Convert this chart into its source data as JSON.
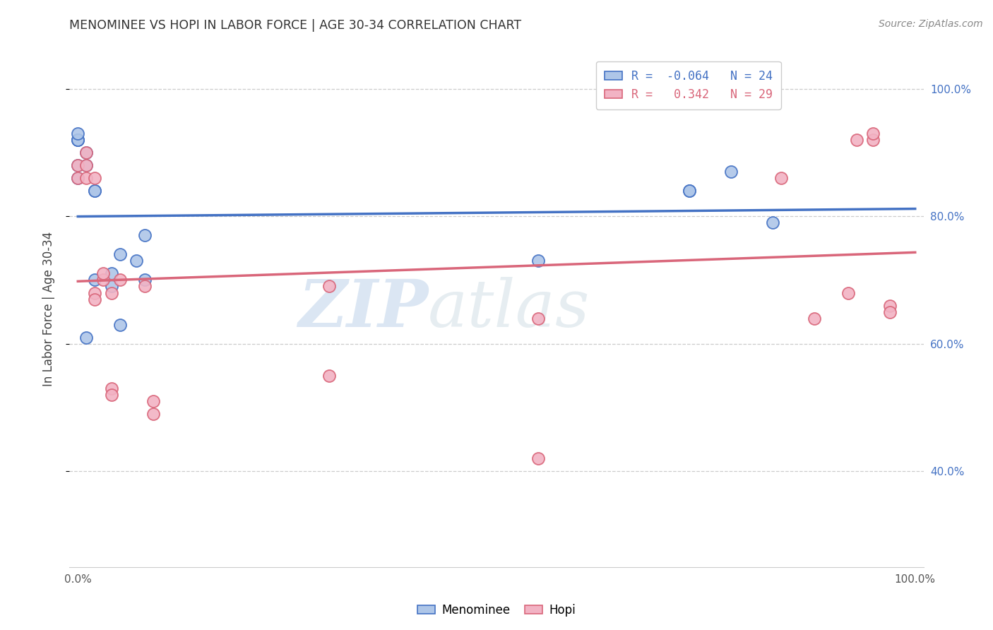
{
  "title": "MENOMINEE VS HOPI IN LABOR FORCE | AGE 30-34 CORRELATION CHART",
  "source": "Source: ZipAtlas.com",
  "ylabel": "In Labor Force | Age 30-34",
  "xlim": [
    -0.01,
    1.01
  ],
  "ylim": [
    0.25,
    1.06
  ],
  "menominee_x": [
    0.0,
    0.0,
    0.0,
    0.0,
    0.0,
    0.0,
    0.01,
    0.01,
    0.01,
    0.02,
    0.02,
    0.02,
    0.04,
    0.04,
    0.05,
    0.05,
    0.07,
    0.08,
    0.08,
    0.55,
    0.73,
    0.73,
    0.78,
    0.83
  ],
  "menominee_y": [
    0.92,
    0.92,
    0.92,
    0.86,
    0.88,
    0.93,
    0.88,
    0.9,
    0.61,
    0.84,
    0.84,
    0.7,
    0.71,
    0.69,
    0.74,
    0.63,
    0.73,
    0.77,
    0.7,
    0.73,
    0.84,
    0.84,
    0.87,
    0.79
  ],
  "hopi_x": [
    0.0,
    0.0,
    0.01,
    0.01,
    0.01,
    0.02,
    0.02,
    0.02,
    0.03,
    0.03,
    0.04,
    0.04,
    0.04,
    0.05,
    0.08,
    0.09,
    0.09,
    0.3,
    0.3,
    0.55,
    0.55,
    0.84,
    0.88,
    0.92,
    0.93,
    0.95,
    0.95,
    0.97,
    0.97
  ],
  "hopi_y": [
    0.86,
    0.88,
    0.9,
    0.88,
    0.86,
    0.86,
    0.68,
    0.67,
    0.7,
    0.71,
    0.68,
    0.53,
    0.52,
    0.7,
    0.69,
    0.51,
    0.49,
    0.69,
    0.55,
    0.64,
    0.42,
    0.86,
    0.64,
    0.68,
    0.92,
    0.92,
    0.93,
    0.66,
    0.65
  ],
  "menominee_color": "#aec6e8",
  "hopi_color": "#f2b3c4",
  "menominee_edge_color": "#4472c4",
  "hopi_edge_color": "#d9667a",
  "trend_menominee_color": "#4472c4",
  "trend_hopi_color": "#d9667a",
  "R_menominee": -0.064,
  "N_menominee": 24,
  "R_hopi": 0.342,
  "N_hopi": 29,
  "watermark_zip": "ZIP",
  "watermark_atlas": "atlas",
  "background_color": "#ffffff",
  "grid_color": "#cccccc",
  "yticks": [
    0.4,
    0.6,
    0.8,
    1.0
  ],
  "ytick_labels": [
    "40.0%",
    "60.0%",
    "80.0%",
    "100.0%"
  ],
  "xticks": [
    0.0,
    0.1,
    0.2,
    0.3,
    0.4,
    0.5,
    0.6,
    0.7,
    0.8,
    0.9,
    1.0
  ],
  "xtick_labels": [
    "0.0%",
    "",
    "",
    "",
    "",
    "",
    "",
    "",
    "",
    "",
    "100.0%"
  ]
}
